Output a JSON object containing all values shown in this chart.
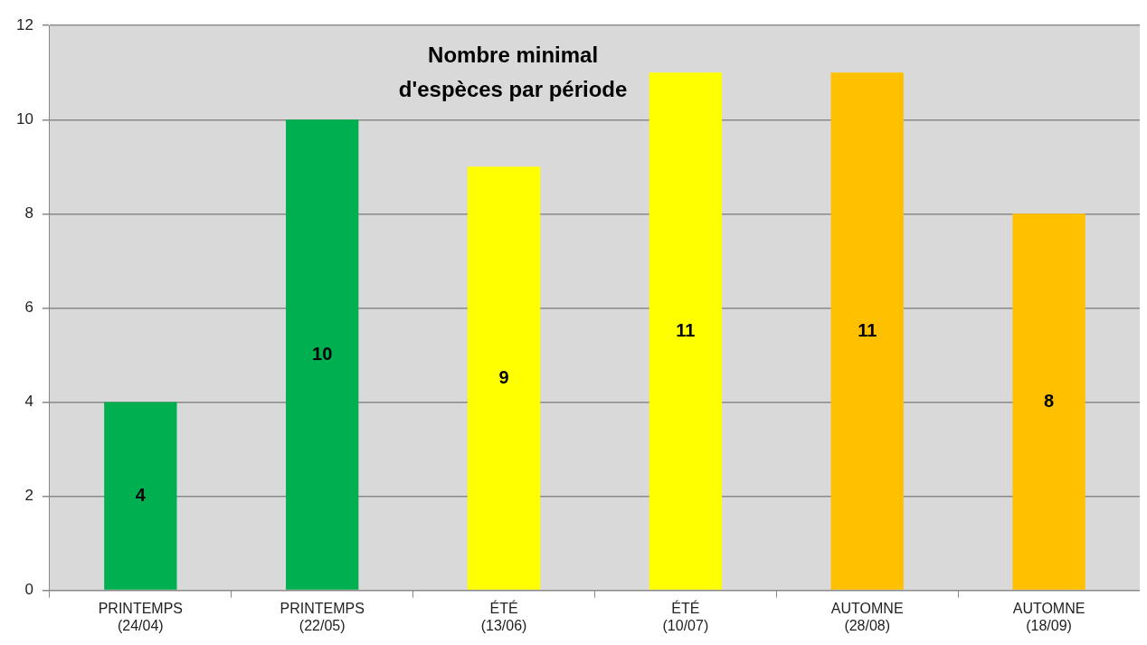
{
  "chart_data": {
    "type": "bar",
    "title": "Nombre minimal\nd'espèces par période",
    "categories": [
      "PRINTEMPS\n(24/04)",
      "PRINTEMPS\n(22/05)",
      "ÉTÉ\n(13/06)",
      "ÉTÉ\n(10/07)",
      "AUTOMNE\n(28/08)",
      "AUTOMNE\n(18/09)"
    ],
    "values": [
      4,
      10,
      9,
      11,
      11,
      8
    ],
    "colors": [
      "#00b050",
      "#00b050",
      "#ffff00",
      "#ffff00",
      "#ffc000",
      "#ffc000"
    ],
    "ylim": [
      0,
      12
    ],
    "yticks": [
      0,
      2,
      4,
      6,
      8,
      10,
      12
    ],
    "grid": "y",
    "data_labels": true,
    "legend": false
  }
}
